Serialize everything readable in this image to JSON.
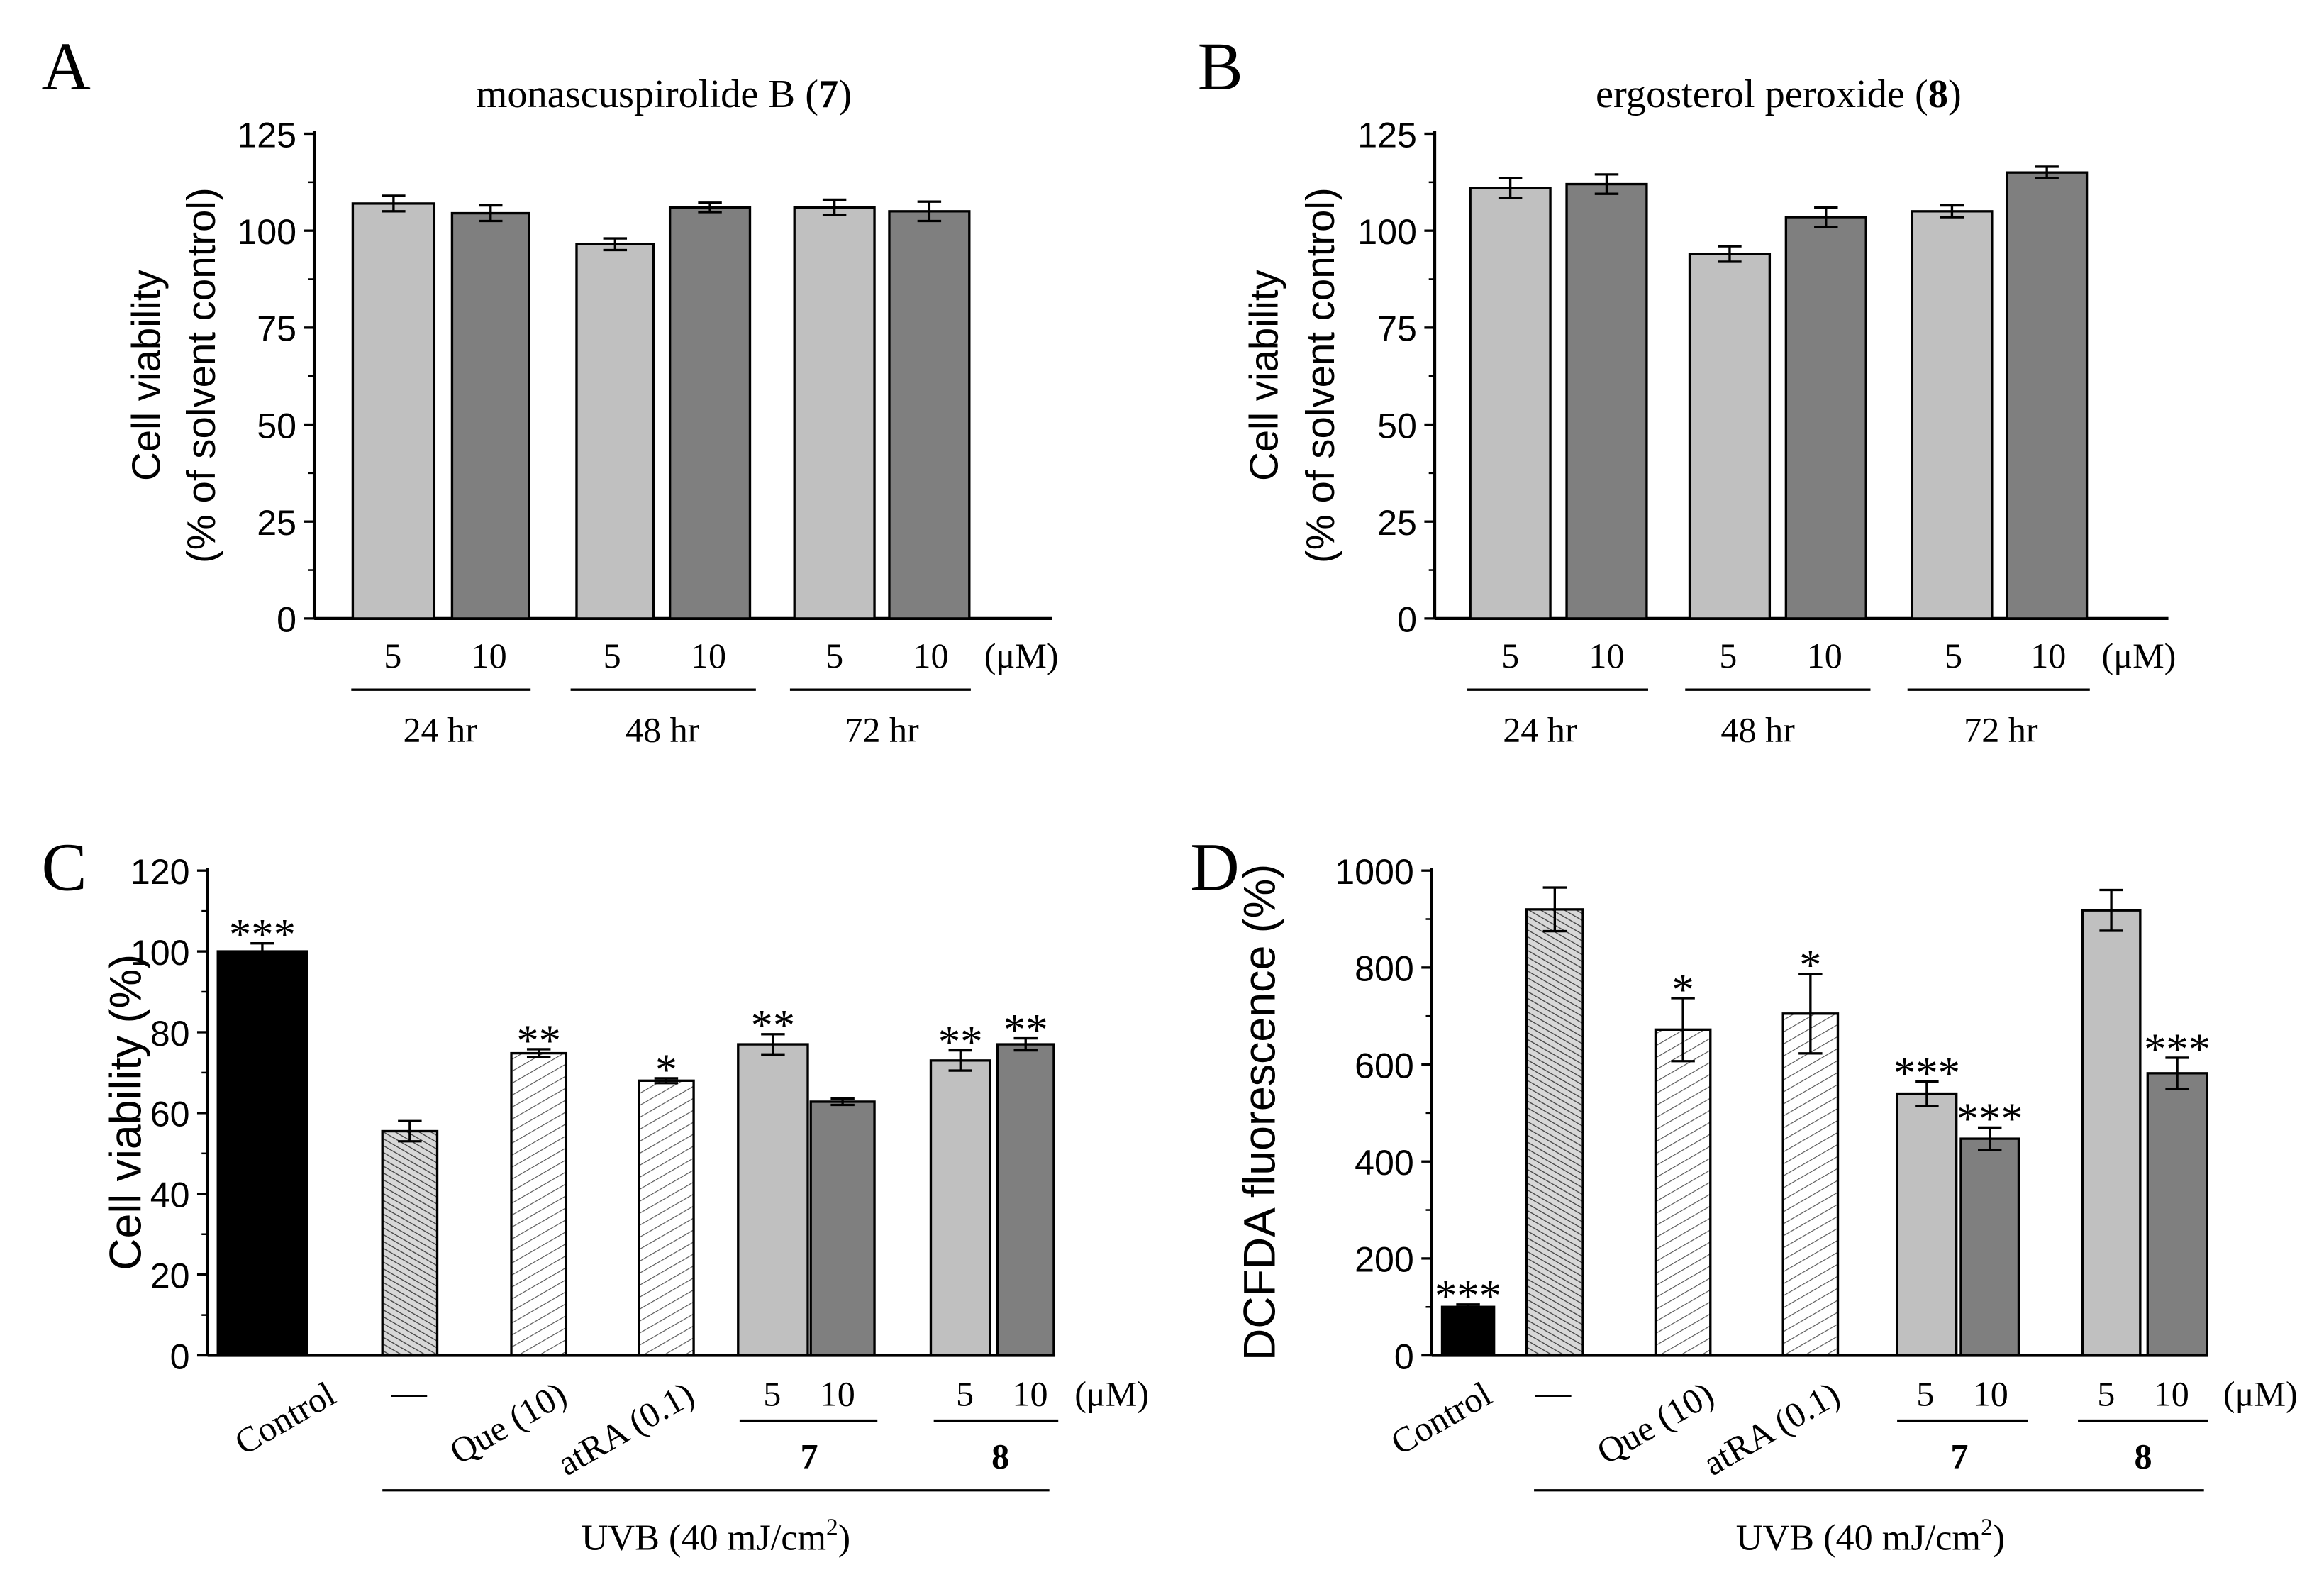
{
  "chart_data": [
    {
      "type": "bar",
      "panel_label": "A",
      "title_parts": [
        "monascuspirolide B (",
        "7",
        ")"
      ],
      "ylabel": [
        "Cell viability",
        "(% of solvent control)"
      ],
      "ylim": [
        0,
        125
      ],
      "yticks": [
        0,
        25,
        50,
        75,
        100,
        125
      ],
      "unit_label": "(μM)",
      "groups": [
        "24 hr",
        "48 hr",
        "72 hr"
      ],
      "bars": [
        {
          "group": "24 hr",
          "dose": "5",
          "value": 107,
          "error": 2,
          "style": "light"
        },
        {
          "group": "24 hr",
          "dose": "10",
          "value": 104.5,
          "error": 2,
          "style": "dark"
        },
        {
          "group": "48 hr",
          "dose": "5",
          "value": 96.5,
          "error": 1.5,
          "style": "light"
        },
        {
          "group": "48 hr",
          "dose": "10",
          "value": 106,
          "error": 1.2,
          "style": "dark"
        },
        {
          "group": "72 hr",
          "dose": "5",
          "value": 106,
          "error": 2,
          "style": "light"
        },
        {
          "group": "72 hr",
          "dose": "10",
          "value": 105,
          "error": 2.5,
          "style": "dark"
        }
      ]
    },
    {
      "type": "bar",
      "panel_label": "B",
      "title_parts": [
        "ergosterol peroxide (",
        "8",
        ")"
      ],
      "ylabel": [
        "Cell viability",
        "(% of solvent control)"
      ],
      "ylim": [
        0,
        125
      ],
      "yticks": [
        0,
        25,
        50,
        75,
        100,
        125
      ],
      "unit_label": "(μM)",
      "groups": [
        "24 hr",
        "48 hr",
        "72 hr"
      ],
      "bars": [
        {
          "group": "24 hr",
          "dose": "5",
          "value": 111,
          "error": 2.5,
          "style": "light"
        },
        {
          "group": "24 hr",
          "dose": "10",
          "value": 112,
          "error": 2.5,
          "style": "dark"
        },
        {
          "group": "48 hr",
          "dose": "5",
          "value": 94,
          "error": 2,
          "style": "light"
        },
        {
          "group": "48 hr",
          "dose": "10",
          "value": 103.5,
          "error": 2.5,
          "style": "dark"
        },
        {
          "group": "72 hr",
          "dose": "5",
          "value": 105,
          "error": 1.5,
          "style": "light"
        },
        {
          "group": "72 hr",
          "dose": "10",
          "value": 115,
          "error": 1.5,
          "style": "dark"
        }
      ]
    },
    {
      "type": "bar",
      "panel_label": "C",
      "ylabel": [
        "Cell viability (%)"
      ],
      "ylim": [
        0,
        120
      ],
      "yticks": [
        0,
        20,
        40,
        60,
        80,
        100,
        120
      ],
      "unit_label": "(μM)",
      "treatment_labels": [
        "Control",
        "—",
        "Que (10)",
        "atRA (0.1)"
      ],
      "doses": [
        "5",
        "10",
        "5",
        "10"
      ],
      "compounds": [
        "7",
        "8"
      ],
      "uvb_label_parts": [
        "UVB (40 mJ/cm",
        "2",
        ")"
      ],
      "bars": [
        {
          "category": "Control",
          "value": 100,
          "error": 2,
          "style": "black",
          "annotation": "***"
        },
        {
          "category": "UVB only",
          "value": 55.5,
          "error": 2.5,
          "style": "hatch-dense",
          "annotation": ""
        },
        {
          "category": "Que (10)",
          "value": 74.8,
          "error": 1,
          "style": "hatch-back",
          "annotation": "**"
        },
        {
          "category": "atRA (0.1)",
          "value": 68,
          "error": 0.6,
          "style": "hatch-back",
          "annotation": "*"
        },
        {
          "category": "7 5 μM",
          "value": 77,
          "error": 2.5,
          "style": "light",
          "annotation": "**"
        },
        {
          "category": "7 10 μM",
          "value": 62.8,
          "error": 0.8,
          "style": "dark",
          "annotation": ""
        },
        {
          "category": "8 5 μM",
          "value": 73,
          "error": 2.5,
          "style": "light",
          "annotation": "**"
        },
        {
          "category": "8 10 μM",
          "value": 77,
          "error": 1.5,
          "style": "dark",
          "annotation": "**"
        }
      ]
    },
    {
      "type": "bar",
      "panel_label": "D",
      "ylabel": [
        "DCFDA fluorescence (%)"
      ],
      "ylim": [
        0,
        1000
      ],
      "yticks": [
        0,
        200,
        400,
        600,
        800,
        1000
      ],
      "unit_label": "(μM)",
      "treatment_labels": [
        "Control",
        "—",
        "Que (10)",
        "atRA (0.1)"
      ],
      "doses": [
        "5",
        "10",
        "5",
        "10"
      ],
      "compounds": [
        "7",
        "8"
      ],
      "uvb_label_parts": [
        "UVB (40 mJ/cm",
        "2",
        ")"
      ],
      "bars": [
        {
          "category": "Control",
          "value": 100,
          "error": 5,
          "style": "black",
          "annotation": "***"
        },
        {
          "category": "UVB only",
          "value": 920,
          "error": 45,
          "style": "hatch-dense",
          "annotation": ""
        },
        {
          "category": "Que (10)",
          "value": 672,
          "error": 65,
          "style": "hatch-back",
          "annotation": "*"
        },
        {
          "category": "atRA (0.1)",
          "value": 705,
          "error": 82,
          "style": "hatch-back",
          "annotation": "*"
        },
        {
          "category": "7 5 μM",
          "value": 540,
          "error": 25,
          "style": "light",
          "annotation": "***"
        },
        {
          "category": "7 10 μM",
          "value": 447,
          "error": 23,
          "style": "dark",
          "annotation": "***"
        },
        {
          "category": "8 5 μM",
          "value": 918,
          "error": 42,
          "style": "light",
          "annotation": ""
        },
        {
          "category": "8 10 μM",
          "value": 582,
          "error": 32,
          "style": "dark",
          "annotation": "***"
        }
      ]
    }
  ],
  "colors": {
    "light": "#c0c0c0",
    "dark": "#7f7f7f",
    "black": "#000000",
    "hatch_fill": "#b0b0b0"
  }
}
